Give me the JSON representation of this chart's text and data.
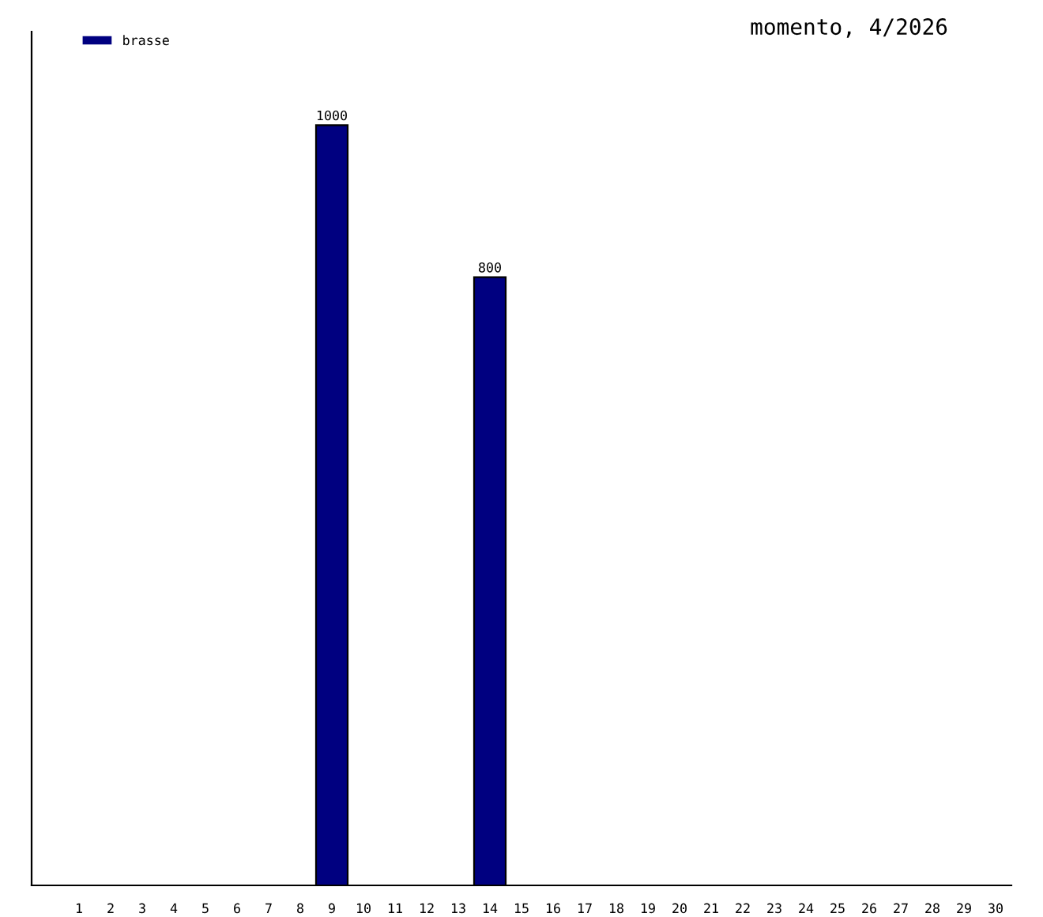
{
  "chart_data": {
    "type": "bar",
    "title": "momento, 4/2026",
    "categories": [
      "1",
      "2",
      "3",
      "4",
      "5",
      "6",
      "7",
      "8",
      "9",
      "10",
      "11",
      "12",
      "13",
      "14",
      "15",
      "16",
      "17",
      "18",
      "19",
      "20",
      "21",
      "22",
      "23",
      "24",
      "25",
      "26",
      "27",
      "28",
      "29",
      "30"
    ],
    "series": [
      {
        "name": "brasse",
        "color": "#000080",
        "values": [
          null,
          null,
          null,
          null,
          null,
          null,
          null,
          null,
          1000,
          null,
          null,
          null,
          null,
          800,
          null,
          null,
          null,
          null,
          null,
          null,
          null,
          null,
          null,
          null,
          null,
          null,
          null,
          null,
          null,
          null
        ]
      }
    ],
    "data_labels": true,
    "legend": "top left",
    "grid": false,
    "tick_labels": "x"
  }
}
